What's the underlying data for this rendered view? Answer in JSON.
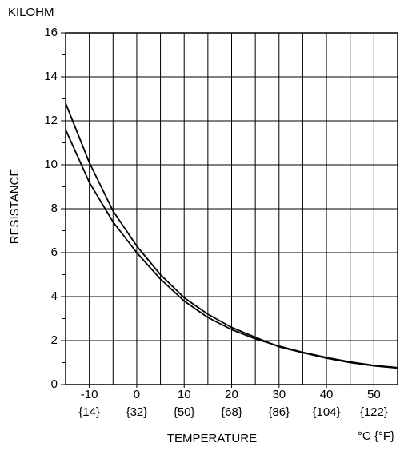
{
  "chart_data": {
    "type": "line",
    "y_unit": "KILOHM",
    "ylabel": "RESISTANCE",
    "xlabel": "TEMPERATURE",
    "x_unit": "°C {°F}",
    "x": [
      -15,
      -10,
      -5,
      0,
      5,
      10,
      15,
      20,
      25,
      30,
      35,
      40,
      45,
      50,
      55
    ],
    "series": [
      {
        "color": "#000000",
        "values": [
          12.8,
          10.1,
          7.9,
          6.3,
          5.0,
          3.95,
          3.2,
          2.6,
          2.15,
          1.72,
          1.45,
          1.2,
          1.0,
          0.85,
          0.75
        ]
      },
      {
        "color": "#000000",
        "values": [
          11.6,
          9.2,
          7.4,
          6.0,
          4.8,
          3.8,
          3.05,
          2.5,
          2.08,
          1.75,
          1.47,
          1.23,
          1.03,
          0.87,
          0.77
        ]
      }
    ],
    "xlim": [
      -15,
      55
    ],
    "ylim": [
      0,
      16
    ],
    "xticks": [
      -10,
      0,
      10,
      20,
      30,
      40,
      50
    ],
    "xticks_f": [
      "{14}",
      "{32}",
      "{50}",
      "{68}",
      "{86}",
      "{104}",
      "{122}"
    ],
    "x_minor_ticks": [
      -15,
      -5,
      5,
      15,
      25,
      35,
      45,
      55
    ],
    "yticks": [
      0,
      2,
      4,
      6,
      8,
      10,
      12,
      14,
      16
    ],
    "y_minor_ticks": [
      1,
      3,
      5,
      7,
      9,
      11,
      13,
      15
    ],
    "grid": true
  }
}
